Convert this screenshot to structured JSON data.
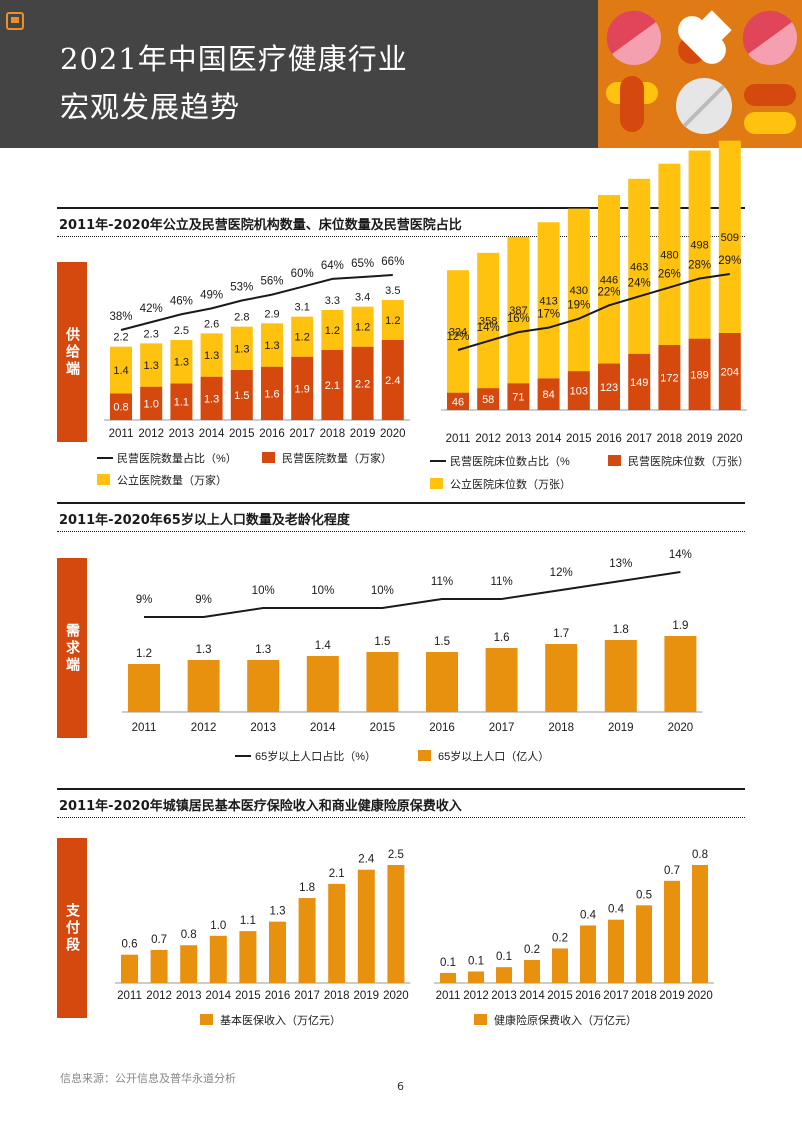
{
  "header": {
    "title_line1": "2021年中国医疗健康行业",
    "title_line2": "宏观发展趋势"
  },
  "colors": {
    "orange": "#e8910f",
    "dark_orange": "#d5490e",
    "yellow": "#ffc20e",
    "line": "#1a1a1a"
  },
  "sections": {
    "s1_title": "2011年-2020年公立及民营医院机构数量、床位数量及民营医院占比",
    "s1_side": "供给端",
    "s2_title": "2011年-2020年65岁以上人口数量及老龄化程度",
    "s2_side": "需求端",
    "s3_title": "2011年-2020年城镇居民基本医疗保险收入和商业健康险原保费收入",
    "s3_side": "支付段"
  },
  "footer": {
    "source": "信息来源：公开信息及普华永道分析",
    "page": "6"
  },
  "chart_data": [
    {
      "id": "hospitals",
      "type": "bar",
      "stacked": true,
      "categories": [
        "2011",
        "2012",
        "2013",
        "2014",
        "2015",
        "2016",
        "2017",
        "2018",
        "2019",
        "2020"
      ],
      "series": [
        {
          "name": "民营医院数量（万家）",
          "values": [
            0.8,
            1.0,
            1.1,
            1.3,
            1.5,
            1.6,
            1.9,
            2.1,
            2.2,
            2.4
          ],
          "labels": [
            "0.8",
            "1.0",
            "1.1",
            "1.3",
            "1.5",
            "1.6",
            "1.9",
            "2.1",
            "2.2",
            "2.4"
          ]
        },
        {
          "name": "公立医院数量（万家）",
          "values": [
            1.4,
            1.3,
            1.3,
            1.3,
            1.3,
            1.3,
            1.2,
            1.2,
            1.2,
            1.2
          ],
          "labels": [
            "1.4",
            "1.3",
            "1.3",
            "1.3",
            "1.3",
            "1.3",
            "1.2",
            "1.2",
            "1.2",
            "1.2"
          ]
        }
      ],
      "totals": [
        "2.2",
        "2.3",
        "2.5",
        "2.6",
        "2.8",
        "2.9",
        "3.1",
        "3.3",
        "3.4",
        "3.5"
      ],
      "line": {
        "name": "民营医院数量占比（%）",
        "values": [
          38,
          42,
          46,
          49,
          53,
          56,
          60,
          64,
          65,
          66
        ],
        "labels": [
          "38%",
          "42%",
          "46%",
          "49%",
          "53%",
          "56%",
          "60%",
          "64%",
          "65%",
          "66%"
        ]
      },
      "ylim": [
        0,
        6
      ]
    },
    {
      "id": "beds",
      "type": "bar",
      "stacked": true,
      "categories": [
        "2011",
        "2012",
        "2013",
        "2014",
        "2015",
        "2016",
        "2017",
        "2018",
        "2019",
        "2020"
      ],
      "series": [
        {
          "name": "民营医院床位数（万张）",
          "values": [
            46,
            58,
            71,
            84,
            103,
            123,
            149,
            172,
            189,
            204
          ],
          "labels": [
            "46",
            "58",
            "71",
            "84",
            "103",
            "123",
            "149",
            "172",
            "189",
            "204"
          ]
        },
        {
          "name": "公立医院床位数（万张）",
          "values": [
            324,
            358,
            387,
            413,
            430,
            446,
            463,
            480,
            498,
            509
          ],
          "labels": [
            "324",
            "358",
            "387",
            "413",
            "430",
            "446",
            "463",
            "480",
            "498",
            "509"
          ]
        }
      ],
      "line": {
        "name": "民营医院床位数占比（%",
        "values": [
          12,
          14,
          16,
          17,
          19,
          22,
          24,
          26,
          28,
          29
        ],
        "labels": [
          "12%",
          "14%",
          "16%",
          "17%",
          "19%",
          "22%",
          "24%",
          "26%",
          "28%",
          "29%"
        ]
      },
      "ylim": [
        0,
        720
      ]
    },
    {
      "id": "elderly",
      "type": "bar",
      "categories": [
        "2011",
        "2012",
        "2013",
        "2014",
        "2015",
        "2016",
        "2017",
        "2018",
        "2019",
        "2020"
      ],
      "series": [
        {
          "name": "65岁以上人口（亿人）",
          "values": [
            1.2,
            1.3,
            1.3,
            1.4,
            1.5,
            1.5,
            1.6,
            1.7,
            1.8,
            1.9
          ],
          "labels": [
            "1.2",
            "1.3",
            "1.3",
            "1.4",
            "1.5",
            "1.5",
            "1.6",
            "1.7",
            "1.8",
            "1.9"
          ]
        }
      ],
      "line": {
        "name": "65岁以上人口占比（%）",
        "values": [
          9,
          9,
          10,
          10,
          10,
          11,
          11,
          12,
          13,
          14
        ],
        "labels": [
          "9%",
          "9%",
          "10%",
          "10%",
          "10%",
          "11%",
          "11%",
          "12%",
          "13%",
          "14%"
        ]
      },
      "ylim": [
        0,
        2.2
      ]
    },
    {
      "id": "basic_insurance",
      "type": "bar",
      "categories": [
        "2011",
        "2012",
        "2013",
        "2014",
        "2015",
        "2016",
        "2017",
        "2018",
        "2019",
        "2020"
      ],
      "series": [
        {
          "name": "基本医保收入（万亿元）",
          "values": [
            0.6,
            0.7,
            0.8,
            1.0,
            1.1,
            1.3,
            1.8,
            2.1,
            2.4,
            2.5
          ],
          "labels": [
            "0.6",
            "0.7",
            "0.8",
            "1.0",
            "1.1",
            "1.3",
            "1.8",
            "2.1",
            "2.4",
            "2.5"
          ]
        }
      ],
      "ylim": [
        0,
        2.5
      ]
    },
    {
      "id": "commercial_insurance",
      "type": "bar",
      "categories": [
        "2011",
        "2012",
        "2013",
        "2014",
        "2015",
        "2016",
        "2017",
        "2018",
        "2019",
        "2020"
      ],
      "series": [
        {
          "name": "健康险原保费收入（万亿元）",
          "values": [
            0.07,
            0.08,
            0.11,
            0.16,
            0.24,
            0.4,
            0.44,
            0.54,
            0.71,
            0.82
          ],
          "labels": [
            "0.1",
            "0.1",
            "0.1",
            "0.2",
            "0.2",
            "0.4",
            "0.4",
            "0.5",
            "0.7",
            "0.8"
          ]
        }
      ],
      "ylim": [
        0,
        0.82
      ]
    }
  ]
}
